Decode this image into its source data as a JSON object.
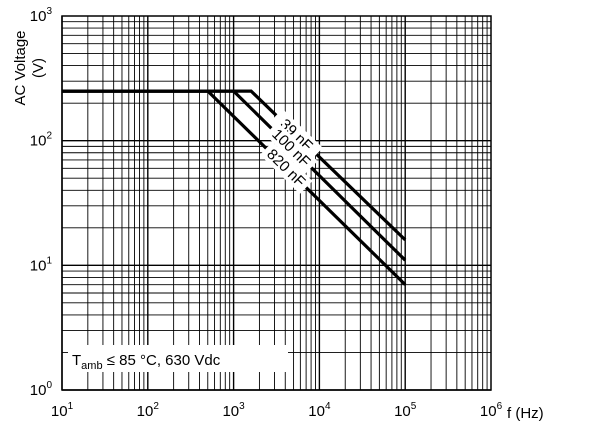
{
  "chart_data": {
    "type": "line",
    "x_scale": "log",
    "y_scale": "log",
    "xlim": [
      10,
      1000000
    ],
    "ylim": [
      1,
      1000
    ],
    "grid": true,
    "xlabel": "f (Hz)",
    "ylabel_line1": "AC Voltage",
    "ylabel_line2": "(V)",
    "x_ticks": [
      {
        "base": "10",
        "exp": "1",
        "value": 10
      },
      {
        "base": "10",
        "exp": "2",
        "value": 100
      },
      {
        "base": "10",
        "exp": "3",
        "value": 1000
      },
      {
        "base": "10",
        "exp": "4",
        "value": 10000
      },
      {
        "base": "10",
        "exp": "5",
        "value": 100000
      },
      {
        "base": "10",
        "exp": "6",
        "value": 1000000
      }
    ],
    "y_ticks": [
      {
        "base": "10",
        "exp": "0",
        "value": 1
      },
      {
        "base": "10",
        "exp": "1",
        "value": 10
      },
      {
        "base": "10",
        "exp": "2",
        "value": 100
      },
      {
        "base": "10",
        "exp": "3",
        "value": 1000
      }
    ],
    "series": [
      {
        "name": "39 nF",
        "points": [
          [
            10,
            250
          ],
          [
            1600,
            250
          ],
          [
            100000,
            16
          ]
        ]
      },
      {
        "name": "100 nF",
        "points": [
          [
            10,
            250
          ],
          [
            1000,
            250
          ],
          [
            100000,
            11
          ]
        ]
      },
      {
        "name": "820 nF",
        "points": [
          [
            10,
            250
          ],
          [
            500,
            250
          ],
          [
            100000,
            7
          ]
        ]
      }
    ],
    "annotation": {
      "main": "T",
      "sub": "amb",
      "rest": " ≤ 85 °C, 630 Vdc"
    }
  }
}
